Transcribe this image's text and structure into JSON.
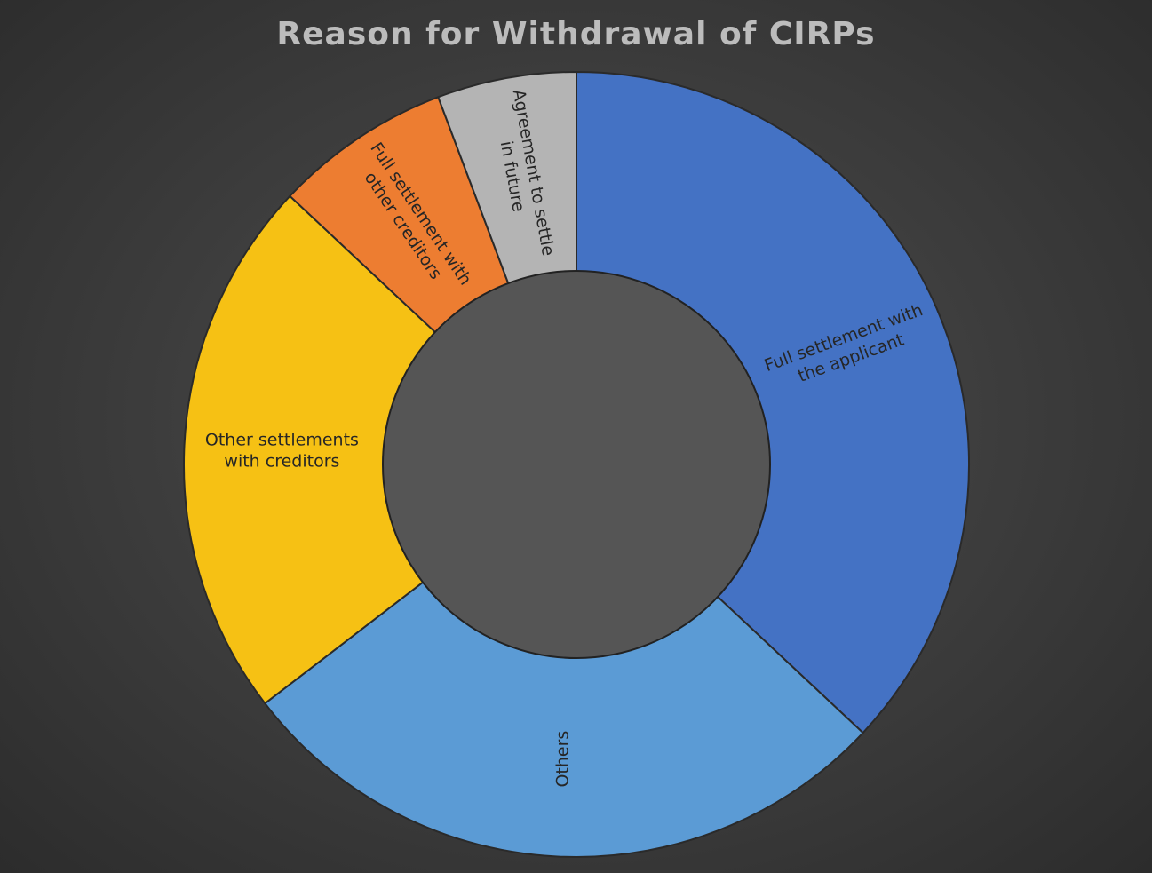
{
  "chart_data": {
    "type": "pie",
    "variant": "donut",
    "title": "Reason for Withdrawal of CIRPs",
    "slices": [
      {
        "label": "Full settlement with the applicant",
        "label_lines": [
          "Full settlement with",
          "the applicant"
        ],
        "value": 35.5,
        "color": "#4472c4"
      },
      {
        "label": "Others",
        "label_lines": [
          "Others"
        ],
        "value": 26.5,
        "color": "#5b9bd5"
      },
      {
        "label": "Other settlements with creditors",
        "label_lines": [
          "Other settlements",
          "with creditors"
        ],
        "value": 21.5,
        "color": "#f6c114"
      },
      {
        "label": "Full settlement with other creditors",
        "label_lines": [
          "Full settlement with",
          "other creditors"
        ],
        "value": 7.0,
        "color": "#ed7d31"
      },
      {
        "label": "Agreement to settle in future",
        "label_lines": [
          "Agreement to settle",
          "in future"
        ],
        "value": 5.5,
        "color": "#b4b4b4"
      }
    ],
    "start_angle_deg": 0,
    "direction": "clockwise",
    "hole_color": "#555555",
    "background_color": "#3c3c3c",
    "legend": "none"
  }
}
